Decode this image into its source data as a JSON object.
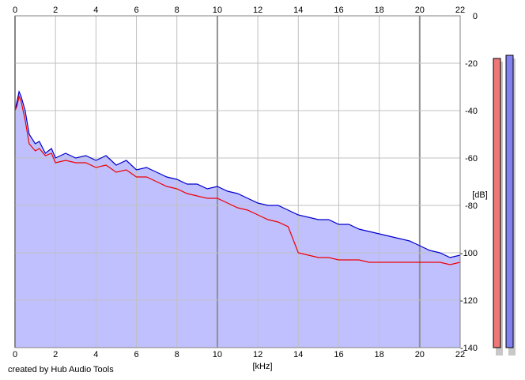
{
  "credit": "created by Hub Audio Tools",
  "chart_data": {
    "type": "line",
    "xlabel": "[kHz]",
    "ylabel": "[dB]",
    "xlim": [
      0,
      22
    ],
    "ylim": [
      -140,
      0
    ],
    "x_ticks": [
      0,
      2,
      4,
      6,
      8,
      10,
      12,
      14,
      16,
      18,
      20,
      22
    ],
    "x_tick_labels": [
      "0",
      "2",
      "4",
      "6",
      "8",
      "10",
      "12",
      "14",
      "16",
      "18",
      "20",
      "22"
    ],
    "y_ticks": [
      0,
      -20,
      -40,
      -60,
      -80,
      -100,
      -120,
      -140
    ],
    "y_tick_labels": [
      "0",
      "-20",
      "-40",
      "-60",
      "-80",
      "-100",
      "-120",
      "-140"
    ],
    "grid": true,
    "x_axis_labels_position": "top and bottom",
    "y_axis_labels_position": "right",
    "colors": {
      "blue": "#0000cc",
      "red": "#ee0000",
      "fill": "#c0c0ff",
      "grid": "#c0c0c0",
      "major_grid": "#909090",
      "meter_red": "#ee7777",
      "meter_blue": "#8080ee"
    },
    "series": [
      {
        "color": "#0000cc",
        "x": [
          0,
          0.1,
          0.2,
          0.3,
          0.5,
          0.7,
          1,
          1.2,
          1.5,
          1.8,
          2,
          2.5,
          3,
          3.5,
          4,
          4.5,
          5,
          5.5,
          6,
          6.5,
          7,
          7.5,
          8,
          8.5,
          9,
          9.5,
          10,
          10.5,
          11,
          11.5,
          12,
          12.5,
          13,
          13.5,
          14,
          14.5,
          15,
          15.5,
          16,
          16.5,
          17,
          17.5,
          18,
          18.5,
          19,
          19.5,
          20,
          20.5,
          21,
          21.5,
          22
        ],
        "y": [
          -40,
          -36,
          -32,
          -34,
          -40,
          -50,
          -54,
          -53,
          -58,
          -56,
          -60,
          -58,
          -60,
          -59,
          -61,
          -59,
          -63,
          -61,
          -65,
          -64,
          -66,
          -68,
          -69,
          -71,
          -71,
          -73,
          -72,
          -74,
          -75,
          -77,
          -79,
          -80,
          -80,
          -82,
          -84,
          -85,
          -86,
          -86,
          -88,
          -88,
          -90,
          -91,
          -92,
          -93,
          -94,
          -95,
          -97,
          -99,
          -100,
          -102,
          -101
        ]
      },
      {
        "color": "#ee0000",
        "x": [
          0,
          0.1,
          0.2,
          0.3,
          0.5,
          0.7,
          1,
          1.2,
          1.5,
          1.8,
          2,
          2.5,
          3,
          3.5,
          4,
          4.5,
          5,
          5.5,
          6,
          6.5,
          7,
          7.5,
          8,
          8.5,
          9,
          9.5,
          10,
          10.5,
          11,
          11.5,
          12,
          12.5,
          13,
          13.5,
          14,
          14.5,
          15,
          15.5,
          16,
          16.5,
          17,
          17.5,
          18,
          18.5,
          19,
          19.5,
          20,
          20.5,
          21,
          21.5,
          22
        ],
        "y": [
          -40,
          -38,
          -34,
          -36,
          -44,
          -54,
          -57,
          -56,
          -59,
          -58,
          -62,
          -61,
          -62,
          -62,
          -64,
          -63,
          -66,
          -65,
          -68,
          -68,
          -70,
          -72,
          -73,
          -75,
          -76,
          -77,
          -77,
          -79,
          -81,
          -82,
          -84,
          -86,
          -87,
          -89,
          -100,
          -101,
          -102,
          -102,
          -103,
          -103,
          -103,
          -104,
          -104,
          -104,
          -104,
          -104,
          -104,
          -104,
          -104,
          -105,
          -104
        ]
      }
    ],
    "level_meters": [
      {
        "color": "#ee7777",
        "top_db": -19
      },
      {
        "color": "#8080ee",
        "top_db": -17
      }
    ]
  }
}
